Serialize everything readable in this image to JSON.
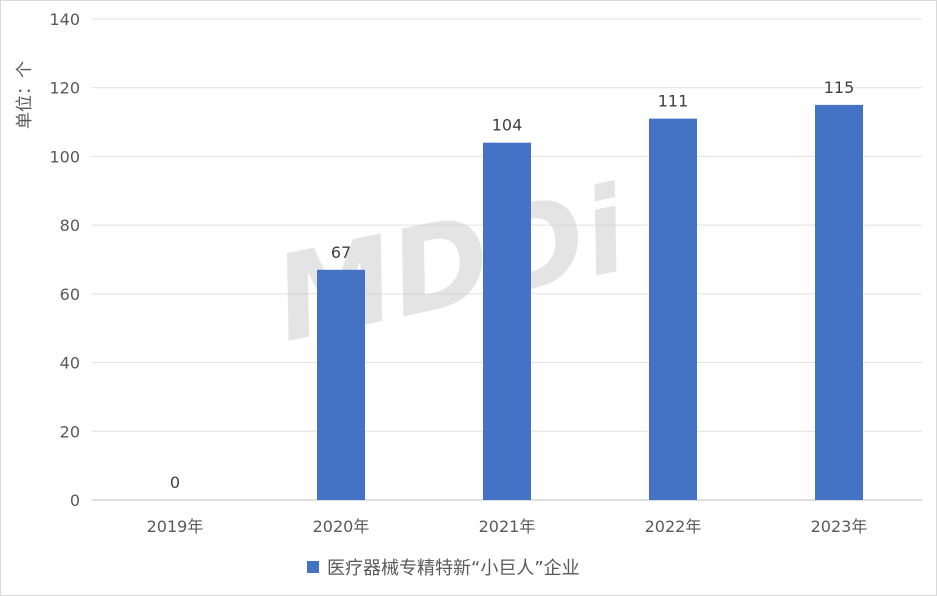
{
  "chart_data": {
    "type": "bar",
    "categories": [
      "2019年",
      "2020年",
      "2021年",
      "2022年",
      "2023年"
    ],
    "series": [
      {
        "name": "医疗器械专精特新“小巨人”企业",
        "values": [
          0,
          67,
          104,
          111,
          115
        ],
        "color": "#4472C4"
      }
    ],
    "ylabel": "单位：个",
    "ylim": [
      0,
      140
    ],
    "yticks": [
      0,
      20,
      40,
      60,
      80,
      100,
      120,
      140
    ],
    "grid": true,
    "legend": "bottom-center",
    "watermark": "MDDi"
  }
}
